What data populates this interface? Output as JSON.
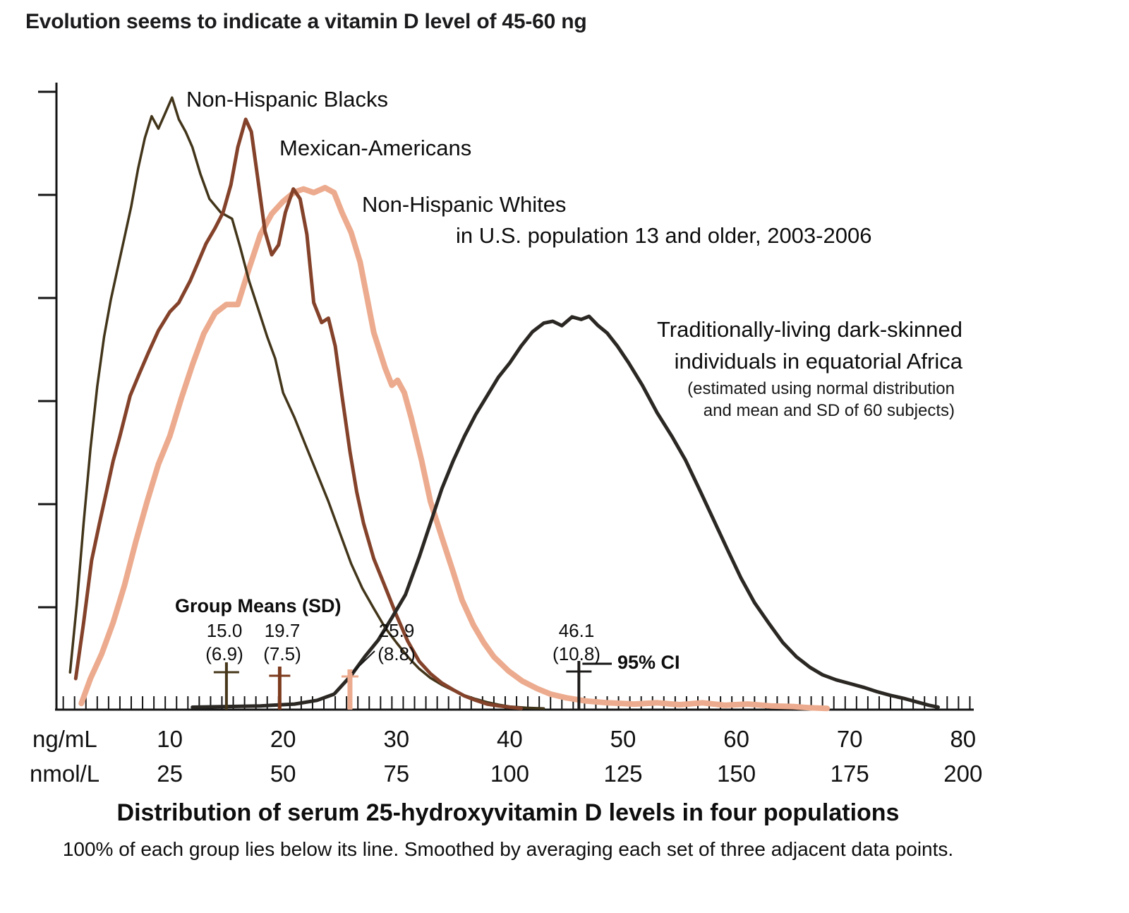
{
  "page": {
    "title": "Evolution seems to indicate a vitamin D level of 45-60 ng"
  },
  "chart_data": {
    "type": "line",
    "title": "Distribution of serum 25-hydroxyvitamin D levels in four populations",
    "subtitle": "100% of each group lies below its line. Smoothed by averaging each set of three adjacent data points.",
    "x_axis": {
      "unit_primary": "ng/mL",
      "unit_secondary": "nmol/L",
      "ticks_ng_ml": [
        10,
        20,
        30,
        40,
        50,
        60,
        70,
        80
      ],
      "ticks_nmol_l": [
        25,
        50,
        75,
        100,
        125,
        150,
        175,
        200
      ],
      "range_ng_ml": [
        0,
        80
      ],
      "minor_tick_step_ng_ml": 1
    },
    "y_axis": {
      "label": "",
      "tick_count_unlabeled": 6,
      "meaning": "relative frequency (no numeric labels shown)",
      "ylim": [
        0,
        1
      ]
    },
    "annotations": {
      "blacks_label": "Non-Hispanic Blacks",
      "mexican_label": "Mexican-Americans",
      "whites_label": "Non-Hispanic Whites",
      "us_population_note": "in U.S. population 13 and older, 2003-2006",
      "africa_label_line1": "Traditionally-living dark-skinned",
      "africa_label_line2": "individuals in equatorial Africa",
      "africa_note_line1": "(estimated using normal distribution",
      "africa_note_line2": "and mean and SD of 60 subjects)"
    },
    "group_means": {
      "heading": "Group Means (SD)",
      "ci_label": "95% CI",
      "items": [
        {
          "series_id": "non-hispanic-blacks",
          "series": "Non-Hispanic Blacks",
          "value": 15.0,
          "mean": "15.0",
          "sd": "(6.9)",
          "color": "#46371a"
        },
        {
          "series_id": "mexican-americans",
          "series": "Mexican-Americans",
          "value": 19.7,
          "mean": "19.7",
          "sd": "(7.5)",
          "color": "#7d3b1e"
        },
        {
          "series_id": "non-hispanic-whites",
          "series": "Non-Hispanic Whites",
          "value": 25.9,
          "mean": "25.9",
          "sd": "(8.8)",
          "color": "#ecab8e"
        },
        {
          "series_id": "equatorial-africa",
          "series": "Traditionally-living dark-skinned individuals in equatorial Africa",
          "value": 46.1,
          "mean": "46.1",
          "sd": "(10.8)",
          "color": "#1e1c1a"
        }
      ]
    },
    "series": [
      {
        "id": "non-hispanic-whites",
        "name": "Non-Hispanic Whites",
        "color": "#ecab8e",
        "stroke_width": 8,
        "points": [
          [
            2.2,
            0.01
          ],
          [
            3,
            0.05
          ],
          [
            4,
            0.09
          ],
          [
            5,
            0.14
          ],
          [
            6,
            0.2
          ],
          [
            7,
            0.27
          ],
          [
            8,
            0.335
          ],
          [
            9,
            0.395
          ],
          [
            10,
            0.44
          ],
          [
            11,
            0.5
          ],
          [
            12,
            0.555
          ],
          [
            13,
            0.605
          ],
          [
            14,
            0.638
          ],
          [
            15,
            0.652
          ],
          [
            16,
            0.652
          ],
          [
            17,
            0.71
          ],
          [
            18,
            0.765
          ],
          [
            19,
            0.798
          ],
          [
            20,
            0.818
          ],
          [
            21,
            0.833
          ],
          [
            21.8,
            0.838
          ],
          [
            22.7,
            0.832
          ],
          [
            23.7,
            0.84
          ],
          [
            24.5,
            0.832
          ],
          [
            25.2,
            0.8
          ],
          [
            26,
            0.768
          ],
          [
            26.8,
            0.72
          ],
          [
            27.4,
            0.664
          ],
          [
            28,
            0.607
          ],
          [
            29,
            0.55
          ],
          [
            29.6,
            0.522
          ],
          [
            30.1,
            0.53
          ],
          [
            30.7,
            0.51
          ],
          [
            31.3,
            0.47
          ],
          [
            32.2,
            0.403
          ],
          [
            33,
            0.335
          ],
          [
            34,
            0.278
          ],
          [
            35,
            0.222
          ],
          [
            35.8,
            0.176
          ],
          [
            36.8,
            0.136
          ],
          [
            37.7,
            0.108
          ],
          [
            38.6,
            0.085
          ],
          [
            39.9,
            0.062
          ],
          [
            41.1,
            0.046
          ],
          [
            42.4,
            0.034
          ],
          [
            43.6,
            0.025
          ],
          [
            45,
            0.019
          ],
          [
            46.7,
            0.014
          ],
          [
            48.6,
            0.011
          ],
          [
            51,
            0.009
          ],
          [
            53,
            0.011
          ],
          [
            55,
            0.008
          ],
          [
            57,
            0.011
          ],
          [
            59,
            0.007
          ],
          [
            61,
            0.009
          ],
          [
            63,
            0.006
          ],
          [
            65,
            0.005
          ],
          [
            66.5,
            0.003
          ],
          [
            68,
            0.002
          ]
        ]
      },
      {
        "id": "non-hispanic-blacks",
        "name": "Non-Hispanic Blacks",
        "color": "#42351a",
        "stroke_width": 3.5,
        "points": [
          [
            1.2,
            0.06
          ],
          [
            1.8,
            0.17
          ],
          [
            2.4,
            0.3
          ],
          [
            3,
            0.42
          ],
          [
            3.6,
            0.52
          ],
          [
            4.2,
            0.6
          ],
          [
            4.8,
            0.66
          ],
          [
            5.4,
            0.71
          ],
          [
            6,
            0.76
          ],
          [
            6.6,
            0.81
          ],
          [
            7.2,
            0.87
          ],
          [
            7.8,
            0.92
          ],
          [
            8.4,
            0.955
          ],
          [
            9,
            0.935
          ],
          [
            9.6,
            0.96
          ],
          [
            10.2,
            0.985
          ],
          [
            10.8,
            0.95
          ],
          [
            11.4,
            0.93
          ],
          [
            12,
            0.905
          ],
          [
            12.7,
            0.862
          ],
          [
            13.5,
            0.822
          ],
          [
            14.5,
            0.8
          ],
          [
            15.5,
            0.79
          ],
          [
            16.2,
            0.745
          ],
          [
            17,
            0.69
          ],
          [
            17.8,
            0.645
          ],
          [
            18.6,
            0.6
          ],
          [
            19.3,
            0.565
          ],
          [
            20,
            0.51
          ],
          [
            21,
            0.47
          ],
          [
            22,
            0.425
          ],
          [
            23,
            0.38
          ],
          [
            24,
            0.335
          ],
          [
            25,
            0.285
          ],
          [
            26,
            0.235
          ],
          [
            27,
            0.195
          ],
          [
            28,
            0.163
          ],
          [
            29,
            0.132
          ],
          [
            30,
            0.108
          ],
          [
            31,
            0.085
          ],
          [
            32,
            0.066
          ],
          [
            33,
            0.051
          ],
          [
            34,
            0.04
          ],
          [
            35,
            0.031
          ],
          [
            36,
            0.023
          ],
          [
            37,
            0.017
          ],
          [
            38,
            0.012
          ],
          [
            39,
            0.008
          ],
          [
            40,
            0.005
          ],
          [
            41.5,
            0.003
          ],
          [
            43,
            0.002
          ]
        ]
      },
      {
        "id": "mexican-americans",
        "name": "Mexican-Americans",
        "color": "#84422a",
        "stroke_width": 5,
        "points": [
          [
            1.7,
            0.05
          ],
          [
            2.4,
            0.14
          ],
          [
            3.1,
            0.24
          ],
          [
            3.8,
            0.3
          ],
          [
            4.4,
            0.35
          ],
          [
            5,
            0.4
          ],
          [
            5.6,
            0.44
          ],
          [
            6.5,
            0.505
          ],
          [
            7.3,
            0.54
          ],
          [
            8.1,
            0.574
          ],
          [
            9,
            0.61
          ],
          [
            10,
            0.64
          ],
          [
            10.8,
            0.655
          ],
          [
            11.8,
            0.69
          ],
          [
            12.5,
            0.72
          ],
          [
            13.2,
            0.75
          ],
          [
            14,
            0.775
          ],
          [
            14.7,
            0.8
          ],
          [
            15.4,
            0.845
          ],
          [
            16,
            0.905
          ],
          [
            16.7,
            0.95
          ],
          [
            17.2,
            0.93
          ],
          [
            17.8,
            0.85
          ],
          [
            18.4,
            0.77
          ],
          [
            19,
            0.732
          ],
          [
            19.6,
            0.748
          ],
          [
            20.2,
            0.8
          ],
          [
            20.9,
            0.838
          ],
          [
            21.5,
            0.822
          ],
          [
            22.1,
            0.765
          ],
          [
            22.7,
            0.655
          ],
          [
            23.4,
            0.623
          ],
          [
            24,
            0.63
          ],
          [
            24.6,
            0.585
          ],
          [
            25.2,
            0.505
          ],
          [
            25.9,
            0.415
          ],
          [
            26.5,
            0.35
          ],
          [
            27.1,
            0.3
          ],
          [
            28,
            0.243
          ],
          [
            29,
            0.198
          ],
          [
            30,
            0.152
          ],
          [
            31,
            0.11
          ],
          [
            32,
            0.078
          ],
          [
            33,
            0.058
          ],
          [
            34,
            0.043
          ],
          [
            35,
            0.032
          ],
          [
            36,
            0.022
          ],
          [
            37,
            0.015
          ],
          [
            38,
            0.009
          ],
          [
            39,
            0.006
          ],
          [
            40,
            0.004
          ],
          [
            41,
            0.002
          ]
        ]
      },
      {
        "id": "equatorial-africa",
        "name": "Traditionally-living dark-skinned individuals in equatorial Africa",
        "color": "#2b2824",
        "stroke_width": 5,
        "points": [
          [
            12,
            0.004
          ],
          [
            15,
            0.005
          ],
          [
            18,
            0.006
          ],
          [
            21,
            0.009
          ],
          [
            23,
            0.015
          ],
          [
            24.5,
            0.025
          ],
          [
            26,
            0.055
          ],
          [
            27.2,
            0.085
          ],
          [
            28.4,
            0.112
          ],
          [
            29.6,
            0.148
          ],
          [
            30.8,
            0.185
          ],
          [
            32,
            0.245
          ],
          [
            33,
            0.3
          ],
          [
            34,
            0.355
          ],
          [
            35,
            0.4
          ],
          [
            36,
            0.44
          ],
          [
            37,
            0.475
          ],
          [
            38,
            0.505
          ],
          [
            39,
            0.535
          ],
          [
            40,
            0.558
          ],
          [
            41,
            0.585
          ],
          [
            42,
            0.608
          ],
          [
            43,
            0.622
          ],
          [
            43.8,
            0.625
          ],
          [
            44.6,
            0.618
          ],
          [
            45.5,
            0.632
          ],
          [
            46.3,
            0.628
          ],
          [
            47,
            0.633
          ],
          [
            47.8,
            0.618
          ],
          [
            48.6,
            0.606
          ],
          [
            49.5,
            0.585
          ],
          [
            50.5,
            0.558
          ],
          [
            51.7,
            0.522
          ],
          [
            53,
            0.478
          ],
          [
            54.3,
            0.44
          ],
          [
            55.5,
            0.402
          ],
          [
            56.8,
            0.352
          ],
          [
            58,
            0.305
          ],
          [
            59.2,
            0.258
          ],
          [
            60.4,
            0.212
          ],
          [
            61.6,
            0.172
          ],
          [
            62.9,
            0.138
          ],
          [
            64.1,
            0.108
          ],
          [
            65.3,
            0.085
          ],
          [
            66.5,
            0.068
          ],
          [
            67.6,
            0.056
          ],
          [
            68.8,
            0.048
          ],
          [
            70,
            0.042
          ],
          [
            71.2,
            0.036
          ],
          [
            72.4,
            0.029
          ],
          [
            73.6,
            0.023
          ],
          [
            74.8,
            0.018
          ],
          [
            76,
            0.012
          ],
          [
            77,
            0.007
          ],
          [
            77.8,
            0.004
          ]
        ]
      }
    ]
  }
}
